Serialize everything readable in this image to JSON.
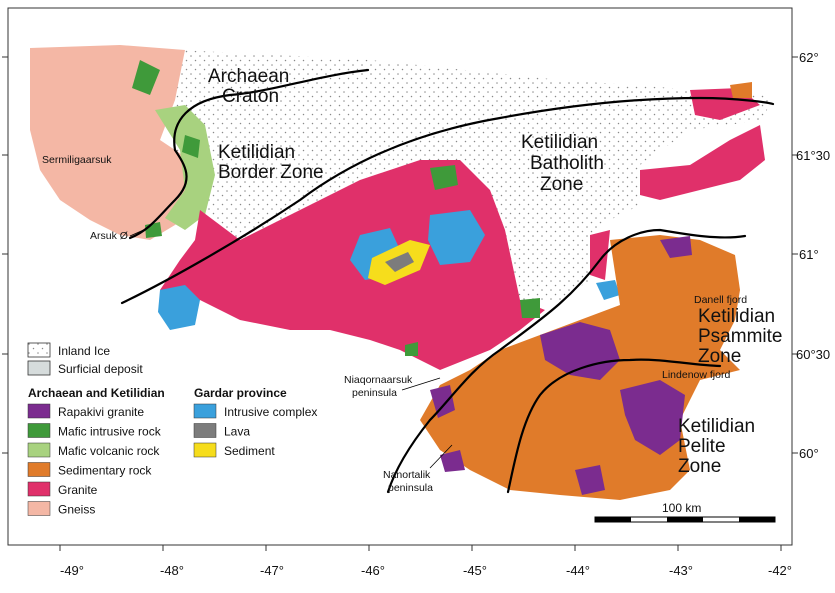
{
  "colors": {
    "ice_dots": "#8a8a8a",
    "rapakivi": "#7b2c8f",
    "mafic_intrusive": "#3f9a3a",
    "mafic_volcanic": "#a8d27f",
    "sedimentary": "#e07b2a",
    "granite": "#e0306a",
    "gneiss": "#f4b7a5",
    "intrusive_complex": "#3aa0dc",
    "lava": "#7c7c7c",
    "sediment": "#f6dd1c",
    "surficial": "#d6dcdc"
  },
  "map": {
    "lon_ticks": [
      "-49°",
      "-48°",
      "-47°",
      "-46°",
      "-45°",
      "-44°",
      "-43°",
      "-42°"
    ],
    "lat_ticks": [
      "62°",
      "61°30",
      "61°",
      "60°30",
      "60°"
    ],
    "zones": {
      "archaean_craton": [
        "Archaean",
        "Craton"
      ],
      "ketilidian_border": [
        "Ketilidian",
        "Border Zone"
      ],
      "ketilidian_batholith": [
        "Ketilidian",
        "Batholith",
        "Zone"
      ],
      "ketilidian_psammite": [
        "Ketilidian",
        "Psammite",
        "Zone"
      ],
      "ketilidian_pelite": [
        "Ketilidian",
        "Pelite",
        "Zone"
      ]
    },
    "places": {
      "sermiligaarsuk": "Sermiligaarsuk",
      "arsuk": "Arsuk Ø",
      "danell": "Danell fjord",
      "lindenow": "Lindenow fjord",
      "niaqornaarsuk": [
        "Niaqornaarsuk",
        "peninsula"
      ],
      "nanortalik": [
        "Nanortalik",
        "peninsula"
      ]
    },
    "scale_bar": "100 km"
  },
  "legend": {
    "inland_ice": "Inland Ice",
    "surficial_deposit": "Surficial deposit",
    "archaean_heading": "Archaean and Ketilidian",
    "archaean_items": [
      {
        "label": "Rapakivi granite",
        "color": "#7b2c8f"
      },
      {
        "label": "Mafic intrusive rock",
        "color": "#3f9a3a"
      },
      {
        "label": "Mafic volcanic rock",
        "color": "#a8d27f"
      },
      {
        "label": "Sedimentary rock",
        "color": "#e07b2a"
      },
      {
        "label": "Granite",
        "color": "#e0306a"
      },
      {
        "label": "Gneiss",
        "color": "#f4b7a5"
      }
    ],
    "gardar_heading": "Gardar province",
    "gardar_items": [
      {
        "label": "Intrusive complex",
        "color": "#3aa0dc"
      },
      {
        "label": "Lava",
        "color": "#7c7c7c"
      },
      {
        "label": "Sediment",
        "color": "#f6dd1c"
      }
    ]
  }
}
